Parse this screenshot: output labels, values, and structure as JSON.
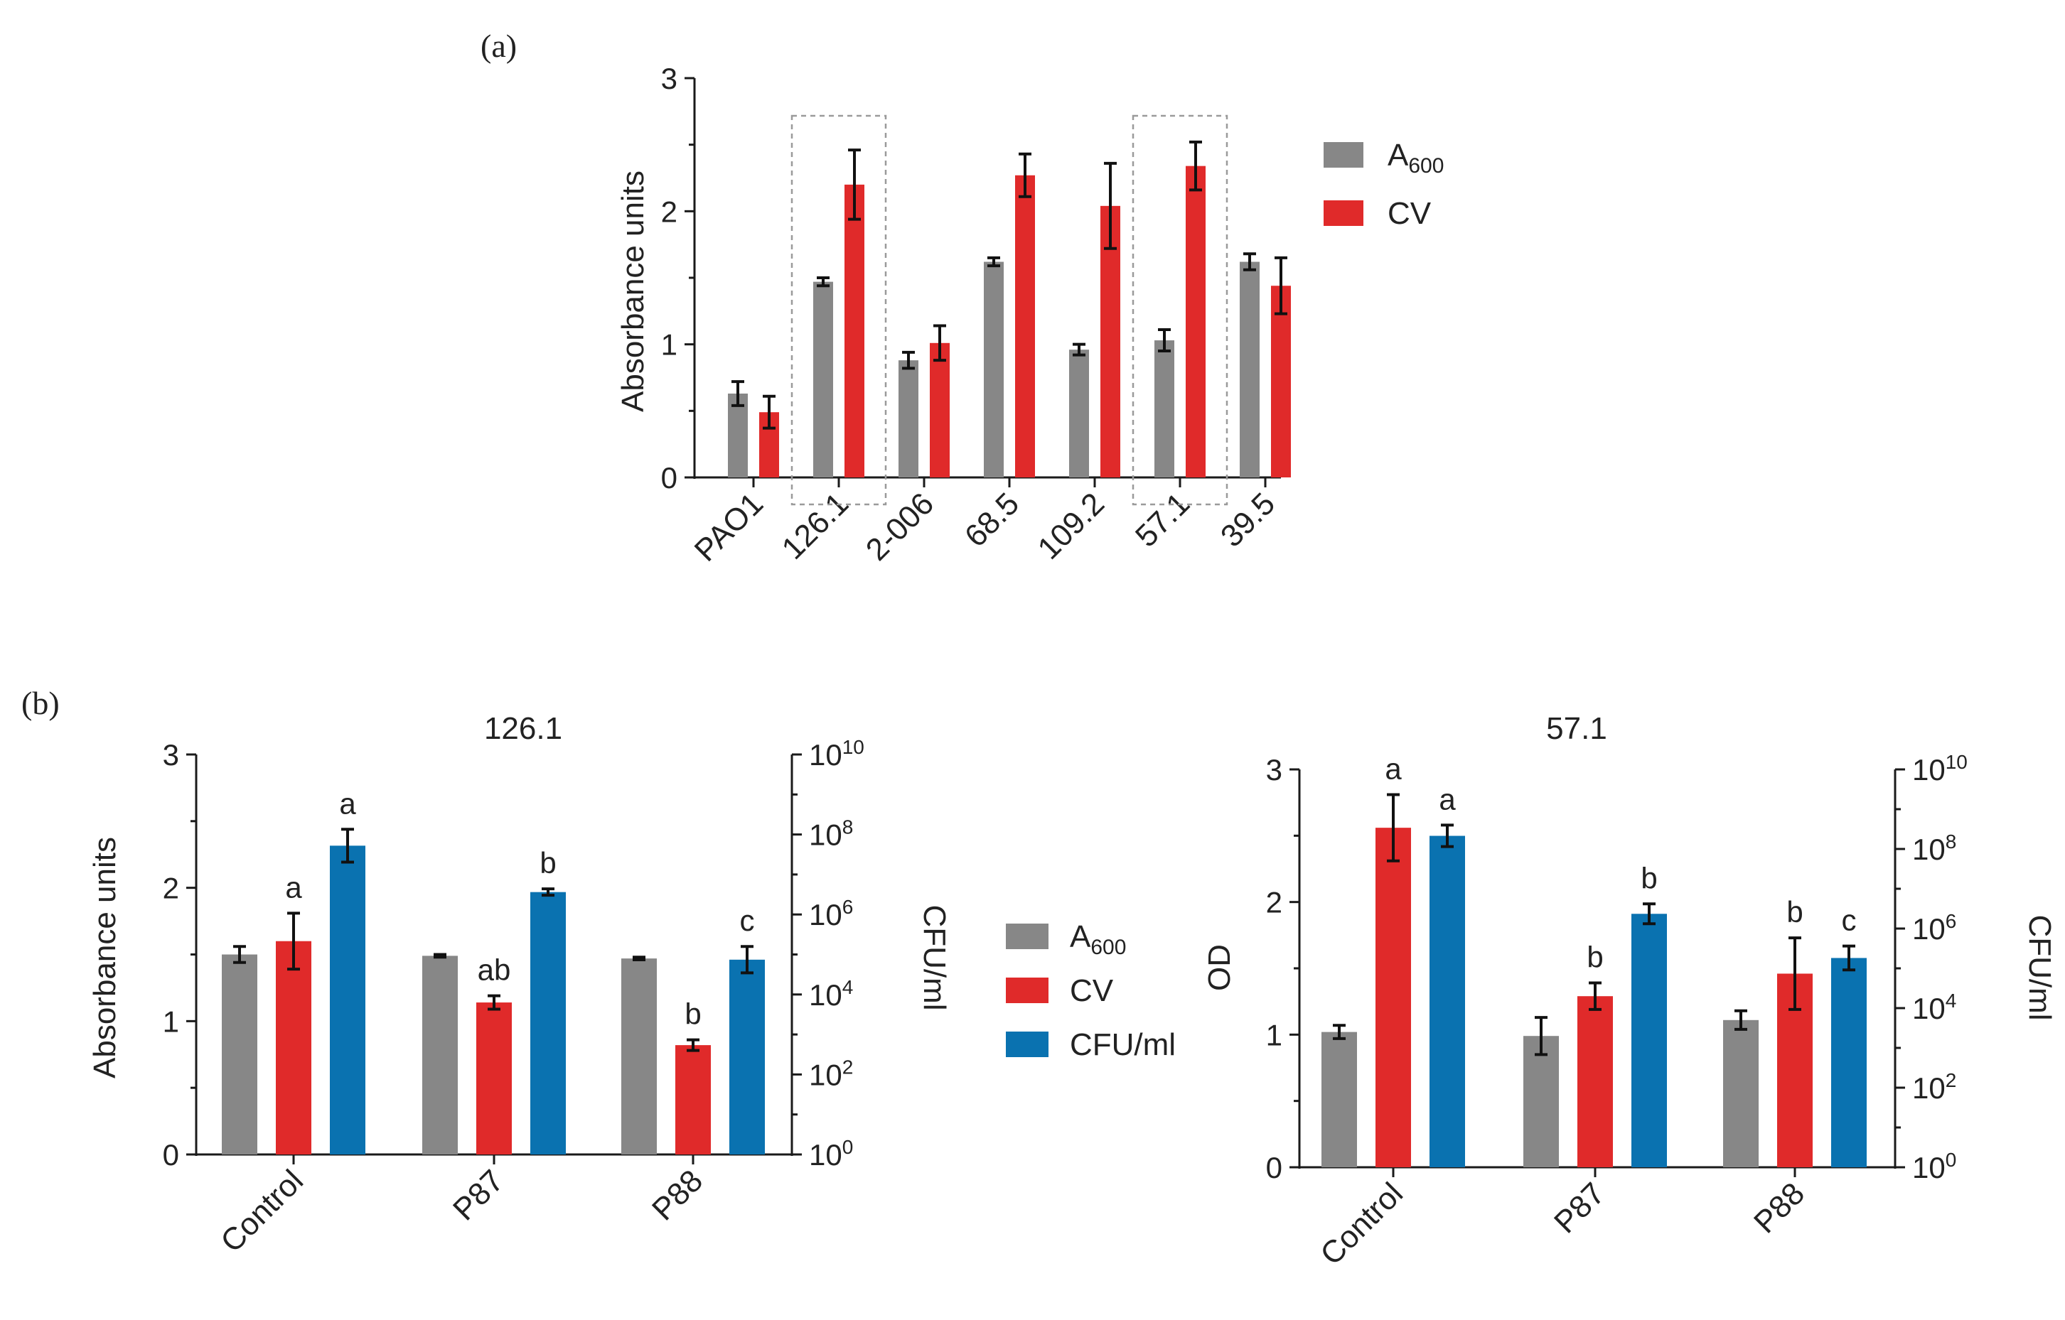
{
  "colors": {
    "a600": "#878787",
    "cv": "#e02a2a",
    "cfu": "#0a72b0",
    "axis": "#1a1a1a"
  },
  "panel_labels": {
    "a": "(a)",
    "b": "(b)"
  },
  "legend_a": [
    {
      "key": "a600",
      "main": "A",
      "sub": "600"
    },
    {
      "key": "cv",
      "main": "CV",
      "sub": ""
    }
  ],
  "legend_b": [
    {
      "key": "a600",
      "main": "A",
      "sub": "600"
    },
    {
      "key": "cv",
      "main": "CV",
      "sub": ""
    },
    {
      "key": "cfu",
      "main": "CFU/ml",
      "sub": ""
    }
  ],
  "chart_data": [
    {
      "id": "a",
      "type": "bar",
      "title": "",
      "xlabel": "",
      "ylabel": "Absorbance units",
      "ylim": [
        0,
        3
      ],
      "yticks": [
        "0",
        "1",
        "2",
        "3"
      ],
      "categories": [
        "PAO1",
        "126.1",
        "2-006",
        "68.5",
        "109.2",
        "57.1",
        "39.5"
      ],
      "highlighted_categories": [
        "126.1",
        "57.1"
      ],
      "series": [
        {
          "name": "A600",
          "key": "a600",
          "values": [
            0.63,
            1.47,
            0.88,
            1.62,
            0.96,
            1.03,
            1.62
          ],
          "errors": [
            0.09,
            0.03,
            0.06,
            0.03,
            0.04,
            0.08,
            0.06
          ]
        },
        {
          "name": "CV",
          "key": "cv",
          "values": [
            0.49,
            2.2,
            1.01,
            2.27,
            2.04,
            2.34,
            1.44
          ],
          "errors": [
            0.12,
            0.26,
            0.13,
            0.16,
            0.32,
            0.18,
            0.21
          ]
        }
      ]
    },
    {
      "id": "b1",
      "type": "bar",
      "title": "126.1",
      "ylabel": "Absorbance units",
      "ylim": [
        0,
        3
      ],
      "yticks": [
        "0",
        "1",
        "2",
        "3"
      ],
      "y2label": "CFU/ml",
      "y2_log10_range": [
        0,
        10
      ],
      "y2_tick_exponents": [
        "0",
        "2",
        "4",
        "6",
        "8",
        "10"
      ],
      "categories": [
        "Control",
        "P87",
        "P88"
      ],
      "series": [
        {
          "name": "A600",
          "key": "a600",
          "axis": "left",
          "values": [
            1.5,
            1.49,
            1.47
          ],
          "errors": [
            0.06,
            0.01,
            0.01
          ],
          "letters": [
            "",
            "",
            ""
          ]
        },
        {
          "name": "CV",
          "key": "cv",
          "axis": "left",
          "values": [
            1.6,
            1.14,
            0.82
          ],
          "errors": [
            0.21,
            0.05,
            0.04
          ],
          "letters": [
            "a",
            "ab",
            "b"
          ]
        },
        {
          "name": "CFU/ml",
          "key": "cfu",
          "axis": "right",
          "log10_values": [
            7.72,
            6.56,
            4.87
          ],
          "errors_log10": [
            0.41,
            0.08,
            0.33
          ],
          "letters": [
            "a",
            "b",
            "c"
          ]
        }
      ]
    },
    {
      "id": "b2",
      "type": "bar",
      "title": "57.1",
      "ylabel": "OD",
      "ylim": [
        0,
        3
      ],
      "yticks": [
        "0",
        "1",
        "2",
        "3"
      ],
      "y2label": "CFU/ml",
      "y2_log10_range": [
        0,
        10
      ],
      "y2_tick_exponents": [
        "0",
        "2",
        "4",
        "6",
        "8",
        "10"
      ],
      "categories": [
        "Control",
        "P87",
        "P88"
      ],
      "series": [
        {
          "name": "A600",
          "key": "a600",
          "axis": "left",
          "values": [
            1.02,
            0.99,
            1.11
          ],
          "errors": [
            0.05,
            0.14,
            0.07
          ],
          "letters": [
            "",
            "",
            ""
          ]
        },
        {
          "name": "CV",
          "key": "cv",
          "axis": "left",
          "values": [
            2.56,
            1.29,
            1.46
          ],
          "errors": [
            0.25,
            0.1,
            0.27
          ],
          "letters": [
            "a",
            "b",
            "b"
          ]
        },
        {
          "name": "CFU/ml",
          "key": "cfu",
          "axis": "right",
          "log10_values": [
            8.33,
            6.37,
            5.26
          ],
          "errors_log10": [
            0.27,
            0.25,
            0.3
          ],
          "letters": [
            "a",
            "b",
            "c"
          ]
        }
      ]
    }
  ]
}
